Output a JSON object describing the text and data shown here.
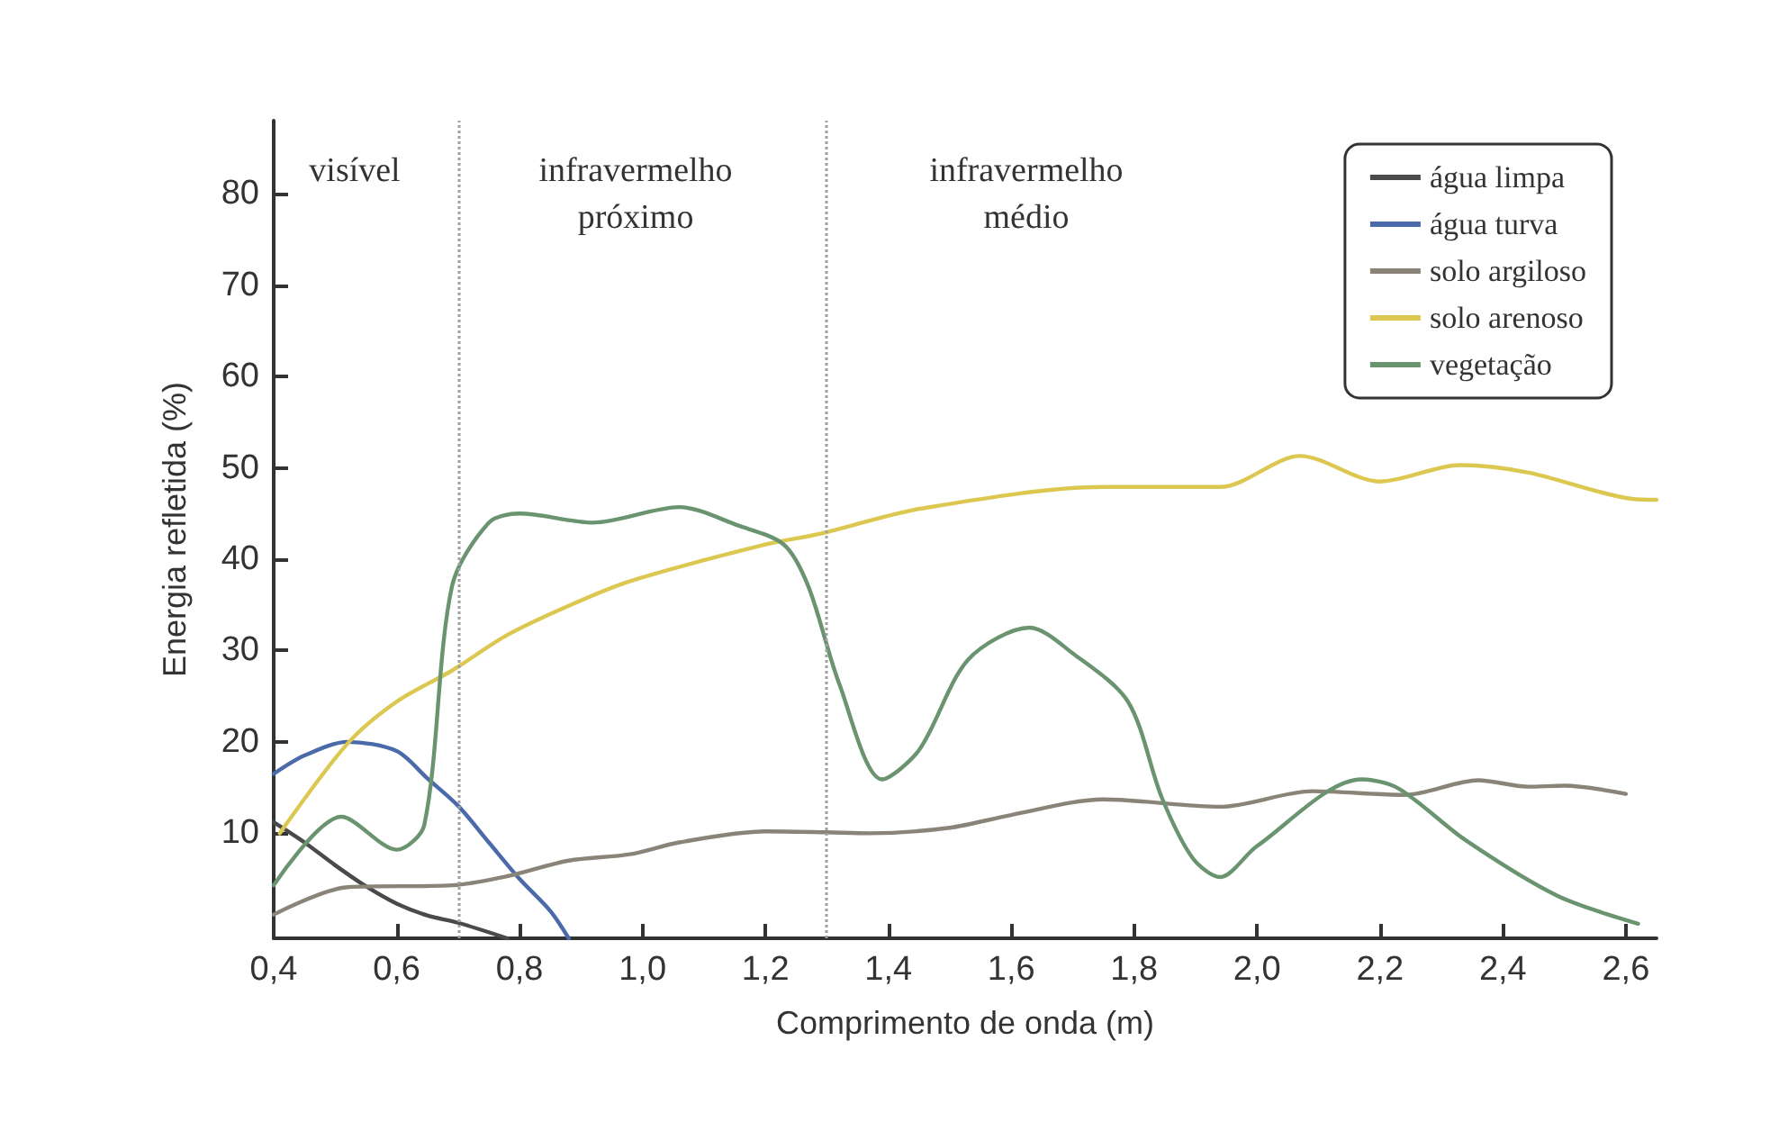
{
  "chart_data": {
    "type": "line",
    "xlabel": "Comprimento de onda (m)",
    "ylabel": "Energia refletida (%)",
    "xlim": [
      0.4,
      2.65
    ],
    "ylim": [
      -1.5,
      88
    ],
    "xticks": [
      {
        "value": 0.4,
        "label": "0,4"
      },
      {
        "value": 0.6,
        "label": "0,6"
      },
      {
        "value": 0.8,
        "label": "0,8"
      },
      {
        "value": 1.0,
        "label": "1,0"
      },
      {
        "value": 1.2,
        "label": "1,2"
      },
      {
        "value": 1.4,
        "label": "1,4"
      },
      {
        "value": 1.6,
        "label": "1,6"
      },
      {
        "value": 1.8,
        "label": "1,8"
      },
      {
        "value": 2.0,
        "label": "2,0"
      },
      {
        "value": 2.2,
        "label": "2,2"
      },
      {
        "value": 2.4,
        "label": "2,4"
      },
      {
        "value": 2.6,
        "label": "2,6"
      }
    ],
    "yticks": [
      10,
      20,
      30,
      40,
      50,
      60,
      70,
      80
    ],
    "grid": false,
    "legend": "top right",
    "marker": "none",
    "line_style": "solid",
    "ref_lines": [
      {
        "axis": "x",
        "value": 0.7,
        "color": "#a0a0a0",
        "line_style": "dotted"
      },
      {
        "axis": "x",
        "value": 1.3,
        "color": "#a0a0a0",
        "line_style": "dotted"
      }
    ],
    "annotations": [
      "visível",
      "infravermelho\npróximo",
      "infravermelho\nmédio"
    ],
    "series": [
      {
        "name": "água limpa",
        "color": "#4a4a4a",
        "x": [
          0.4,
          0.45,
          0.5,
          0.55,
          0.6,
          0.65,
          0.7,
          0.78
        ],
        "values": [
          11.2,
          9,
          6.5,
          4.2,
          2.3,
          1,
          0.2,
          -1.5
        ]
      },
      {
        "name": "água turva",
        "color": "#4a6aaa",
        "x": [
          0.4,
          0.45,
          0.52,
          0.6,
          0.65,
          0.7,
          0.75,
          0.8,
          0.85,
          0.88
        ],
        "values": [
          16.5,
          18.5,
          20,
          19,
          16,
          13,
          9,
          5,
          1.5,
          -1.5
        ]
      },
      {
        "name": "solo argiloso",
        "color": "#8a8478",
        "x": [
          0.4,
          0.52,
          0.69,
          0.78,
          0.88,
          0.98,
          1.06,
          1.2,
          1.3,
          1.37,
          1.5,
          1.6,
          1.75,
          1.94,
          2.09,
          2.24,
          2.36,
          2.44,
          2.5,
          2.6
        ],
        "values": [
          1.1,
          4.1,
          4.3,
          5.3,
          7,
          7.7,
          9,
          10.2,
          10.1,
          10,
          10.6,
          12,
          13.7,
          12.9,
          14.6,
          14.2,
          15.8,
          15.1,
          15.2,
          14.3
        ]
      },
      {
        "name": "solo arenoso",
        "color": "#dcc850",
        "x": [
          0.41,
          0.52,
          0.6,
          0.69,
          0.78,
          0.88,
          0.98,
          1.2,
          1.29,
          1.45,
          1.75,
          1.94,
          2.07,
          2.2,
          2.33,
          2.44,
          2.61,
          2.65
        ],
        "values": [
          10,
          19.8,
          24.4,
          27.8,
          31.7,
          34.9,
          37.6,
          41.6,
          42.8,
          45.5,
          47.9,
          47.9,
          51.3,
          48.5,
          50.3,
          49.5,
          46.6,
          46.5
        ]
      },
      {
        "name": "vegetação",
        "color": "#6a9470",
        "x": [
          0.4,
          0.51,
          0.6,
          0.645,
          0.69,
          0.75,
          0.8,
          0.92,
          1.06,
          1.155,
          1.23,
          1.27,
          1.32,
          1.39,
          1.45,
          1.53,
          1.63,
          1.7,
          1.79,
          1.845,
          1.895,
          1.94,
          2.0,
          2.17,
          2.23,
          2.34,
          2.49,
          2.62
        ],
        "values": [
          4.3,
          11.8,
          8.2,
          10.9,
          37,
          44,
          45,
          44,
          45.7,
          43.7,
          41.6,
          37,
          26.4,
          15.9,
          19.1,
          29,
          32.5,
          29.7,
          24.4,
          13.9,
          7.3,
          5.2,
          8.6,
          15.9,
          14.9,
          9.2,
          3.1,
          0.1
        ]
      }
    ]
  }
}
